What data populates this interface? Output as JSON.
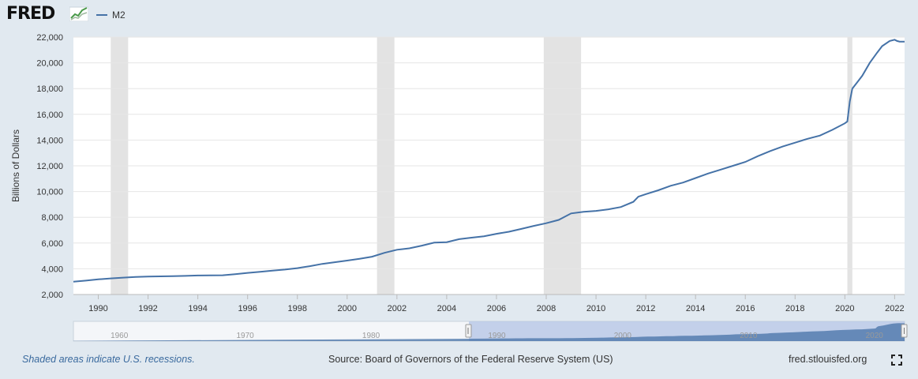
{
  "header": {
    "logo_text": "FRED",
    "series_label": "M2"
  },
  "colors": {
    "line": "#4572a7",
    "recession": "#e3e3e3",
    "navigator_fill": "#b7c7e6"
  },
  "footer": {
    "recession_note": "Shaded areas indicate U.S. recessions.",
    "source": "Source: Board of Governors of the Federal Reserve System (US)",
    "site": "fred.stlouisfed.org"
  },
  "chart_data": {
    "type": "line",
    "title": "M2",
    "ylabel": "Billions of Dollars",
    "xlabel": "",
    "xlim": [
      1989.0,
      2022.4
    ],
    "ylim": [
      2000,
      22000
    ],
    "yticks": [
      "2,000",
      "4,000",
      "6,000",
      "8,000",
      "10,000",
      "12,000",
      "14,000",
      "16,000",
      "18,000",
      "20,000",
      "22,000"
    ],
    "xticks": [
      "1990",
      "1992",
      "1994",
      "1996",
      "1998",
      "2000",
      "2002",
      "2004",
      "2006",
      "2008",
      "2010",
      "2012",
      "2014",
      "2016",
      "2018",
      "2020",
      "2022"
    ],
    "recessions": [
      [
        1990.5,
        1991.2
      ],
      [
        2001.2,
        2001.9
      ],
      [
        2007.9,
        2009.4
      ],
      [
        2020.1,
        2020.3
      ]
    ],
    "series": [
      {
        "name": "M2",
        "x": [
          1989.0,
          1989.5,
          1990.0,
          1990.5,
          1991.0,
          1991.5,
          1992.0,
          1992.5,
          1993.0,
          1993.5,
          1994.0,
          1994.5,
          1995.0,
          1995.5,
          1996.0,
          1996.5,
          1997.0,
          1997.5,
          1998.0,
          1998.5,
          1999.0,
          1999.5,
          2000.0,
          2000.5,
          2001.0,
          2001.5,
          2002.0,
          2002.5,
          2003.0,
          2003.5,
          2004.0,
          2004.5,
          2005.0,
          2005.5,
          2006.0,
          2006.5,
          2007.0,
          2007.5,
          2008.0,
          2008.5,
          2009.0,
          2009.5,
          2010.0,
          2010.5,
          2011.0,
          2011.5,
          2011.7,
          2012.0,
          2012.5,
          2013.0,
          2013.5,
          2014.0,
          2014.5,
          2015.0,
          2015.5,
          2016.0,
          2016.5,
          2017.0,
          2017.5,
          2018.0,
          2018.5,
          2019.0,
          2019.5,
          2020.0,
          2020.1,
          2020.2,
          2020.3,
          2020.5,
          2020.7,
          2021.0,
          2021.3,
          2021.5,
          2021.8,
          2022.0,
          2022.1,
          2022.2,
          2022.4
        ],
        "values": [
          3000,
          3080,
          3180,
          3250,
          3310,
          3360,
          3400,
          3410,
          3430,
          3450,
          3480,
          3490,
          3500,
          3580,
          3680,
          3760,
          3850,
          3940,
          4050,
          4200,
          4380,
          4510,
          4640,
          4780,
          4940,
          5240,
          5480,
          5590,
          5800,
          6030,
          6070,
          6300,
          6420,
          6530,
          6720,
          6880,
          7100,
          7330,
          7540,
          7800,
          8300,
          8430,
          8500,
          8620,
          8800,
          9200,
          9600,
          9800,
          10100,
          10450,
          10700,
          11050,
          11400,
          11700,
          12000,
          12300,
          12750,
          13150,
          13500,
          13800,
          14100,
          14350,
          14800,
          15300,
          15450,
          17000,
          18000,
          18500,
          19000,
          20000,
          20800,
          21300,
          21700,
          21800,
          21700,
          21650,
          21650
        ]
      }
    ]
  },
  "navigator": {
    "labels": [
      "1960",
      "1970",
      "1980",
      "1990",
      "2000",
      "2010",
      "2020"
    ]
  }
}
